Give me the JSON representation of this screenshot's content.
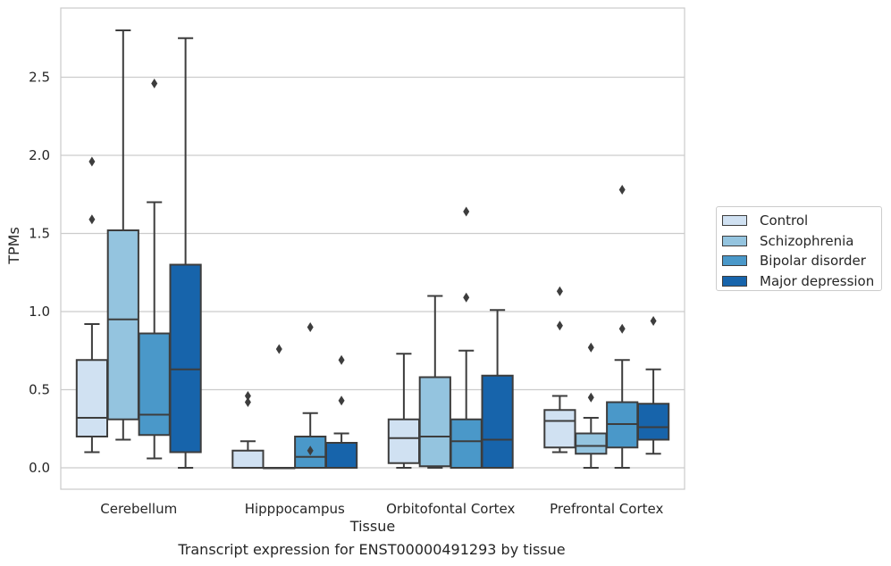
{
  "chart_data": {
    "type": "boxplot",
    "title": "",
    "caption": "Transcript expression for ENST00000491293 by tissue",
    "xlabel": "Tissue",
    "ylabel": "TPMs",
    "ylim": [
      -0.14,
      2.95
    ],
    "yticks": [
      "0.0",
      "0.5",
      "1.0",
      "1.5",
      "2.0",
      "2.5"
    ],
    "grid": "horizontal",
    "legend_position": "right",
    "categories": [
      "Cerebellum",
      "Hipppocampus",
      "Orbitofontal Cortex",
      "Prefrontal Cortex"
    ],
    "series": [
      {
        "name": "Control",
        "color": "#d0e1f2",
        "boxes": [
          {
            "whislo": 0.1,
            "q1": 0.2,
            "med": 0.32,
            "q3": 0.69,
            "whishi": 0.92,
            "fliers": [
              1.59,
              1.96
            ]
          },
          {
            "whislo": 0.0,
            "q1": 0.0,
            "med": 0.0,
            "q3": 0.11,
            "whishi": 0.17,
            "fliers": [
              0.42,
              0.46
            ]
          },
          {
            "whislo": 0.0,
            "q1": 0.03,
            "med": 0.19,
            "q3": 0.31,
            "whishi": 0.73,
            "fliers": []
          },
          {
            "whislo": 0.1,
            "q1": 0.13,
            "med": 0.3,
            "q3": 0.37,
            "whishi": 0.46,
            "fliers": [
              0.91,
              1.13
            ]
          }
        ]
      },
      {
        "name": "Schizophrenia",
        "color": "#94c4df",
        "boxes": [
          {
            "whislo": 0.18,
            "q1": 0.31,
            "med": 0.95,
            "q3": 1.52,
            "whishi": 2.8,
            "fliers": []
          },
          {
            "whislo": 0.0,
            "q1": 0.0,
            "med": 0.0,
            "q3": 0.0,
            "whishi": 0.0,
            "fliers": [
              0.76
            ]
          },
          {
            "whislo": 0.0,
            "q1": 0.01,
            "med": 0.2,
            "q3": 0.58,
            "whishi": 1.1,
            "fliers": []
          },
          {
            "whislo": 0.0,
            "q1": 0.09,
            "med": 0.14,
            "q3": 0.22,
            "whishi": 0.32,
            "fliers": [
              0.45,
              0.77
            ]
          }
        ]
      },
      {
        "name": "Bipolar disorder",
        "color": "#4a98c9",
        "boxes": [
          {
            "whislo": 0.06,
            "q1": 0.21,
            "med": 0.34,
            "q3": 0.86,
            "whishi": 1.7,
            "fliers": [
              2.46
            ]
          },
          {
            "whislo": 0.0,
            "q1": 0.0,
            "med": 0.07,
            "q3": 0.2,
            "whishi": 0.35,
            "fliers": [
              0.11,
              0.9
            ]
          },
          {
            "whislo": 0.0,
            "q1": 0.0,
            "med": 0.17,
            "q3": 0.31,
            "whishi": 0.75,
            "fliers": [
              1.09,
              1.64
            ]
          },
          {
            "whislo": 0.0,
            "q1": 0.13,
            "med": 0.28,
            "q3": 0.42,
            "whishi": 0.69,
            "fliers": [
              0.89,
              1.78
            ]
          }
        ]
      },
      {
        "name": "Major depression",
        "color": "#1764ab",
        "boxes": [
          {
            "whislo": 0.0,
            "q1": 0.1,
            "med": 0.63,
            "q3": 1.3,
            "whishi": 2.75,
            "fliers": []
          },
          {
            "whislo": 0.0,
            "q1": 0.0,
            "med": 0.0,
            "q3": 0.16,
            "whishi": 0.22,
            "fliers": [
              0.43,
              0.69
            ]
          },
          {
            "whislo": 0.0,
            "q1": 0.0,
            "med": 0.18,
            "q3": 0.59,
            "whishi": 1.01,
            "fliers": []
          },
          {
            "whislo": 0.09,
            "q1": 0.18,
            "med": 0.26,
            "q3": 0.41,
            "whishi": 0.63,
            "fliers": [
              0.94
            ]
          }
        ]
      }
    ]
  }
}
